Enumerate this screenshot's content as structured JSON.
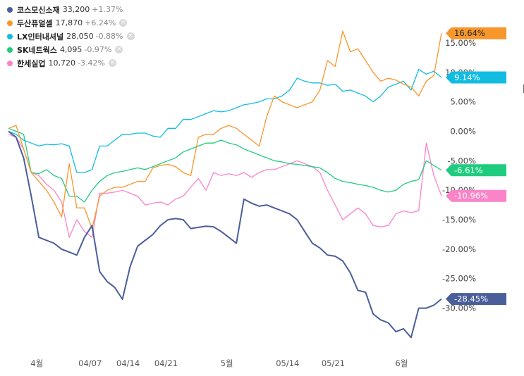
{
  "legend": [
    {
      "name": "코스모신소재",
      "price": "33,200",
      "change": "+1.37%",
      "color": "#4a5e9a",
      "removable": false
    },
    {
      "name": "두산퓨얼셀",
      "price": "17,870",
      "change": "+6.24%",
      "color": "#f7962b",
      "removable": true
    },
    {
      "name": "LX인터내셔널",
      "price": "28,050",
      "change": "-0.88%",
      "color": "#12bce1",
      "removable": true
    },
    {
      "name": "SK네트웍스",
      "price": "4,095",
      "change": "-0.97%",
      "color": "#1fcc7f",
      "removable": true
    },
    {
      "name": "한세실업",
      "price": "10,720",
      "change": "-3.42%",
      "color": "#fb83c8",
      "removable": true
    }
  ],
  "remove_icon": "×",
  "chart_data": {
    "type": "line",
    "x_tick_labels": [
      "4월",
      "04/07",
      "04/14",
      "04/21",
      "5월",
      "05/14",
      "05/21",
      "6월"
    ],
    "y_tick_labels": [
      "15.00%",
      "10.00%",
      "5.00%",
      "0.00%",
      "-5.00%",
      "-10.00%",
      "-15.00%",
      "-20.00%",
      "-25.00%",
      "-30.00%"
    ],
    "y_ticks": [
      15,
      10,
      5,
      0,
      -5,
      -10,
      -15,
      -20,
      -25,
      -30
    ],
    "ylim": [
      -36.5,
      17.5
    ],
    "n_points": 58,
    "series": [
      {
        "name": "코스모신소재",
        "color": "#4a5e9a",
        "end_label": "-28.45%",
        "values": [
          0,
          -1,
          -4.5,
          -11,
          -18,
          -18.5,
          -19,
          -20,
          -20.5,
          -21,
          -18,
          -16,
          -23.8,
          -25.5,
          -26.5,
          -28.5,
          -23,
          -19.5,
          -18.5,
          -17.5,
          -16,
          -15,
          -14.8,
          -15,
          -16.5,
          -16.3,
          -16.1,
          -16.2,
          -17,
          -18,
          -19,
          -11.5,
          -12.2,
          -12.7,
          -12.5,
          -13,
          -13.5,
          -14,
          -15,
          -17,
          -19,
          -19.8,
          -21,
          -21.2,
          -22,
          -24,
          -27,
          -27.3,
          -31,
          -32,
          -32.5,
          -34,
          -33.5,
          -35,
          -30,
          -30,
          -29.5,
          -28.45
        ]
      },
      {
        "name": "두산퓨얼셀",
        "color": "#f7962b",
        "end_label": "16.64%",
        "values": [
          0.5,
          1,
          -3,
          -7,
          -8.5,
          -10,
          -12,
          -14.5,
          -5.5,
          -13,
          -13,
          -16.5,
          -11,
          -10,
          -9.5,
          -9.5,
          -9,
          -8.5,
          -8.5,
          -6.2,
          -5.8,
          -5.6,
          -6,
          -7,
          -7.5,
          -1,
          -0.5,
          -0.5,
          0.5,
          1,
          0.5,
          -0.5,
          -1.5,
          -2.5,
          2.5,
          6,
          5,
          4.5,
          4,
          4.5,
          5,
          7,
          12,
          11,
          17,
          13.5,
          14,
          12,
          10,
          8.5,
          9,
          8.7,
          8,
          7.5,
          6,
          8.5,
          9.5,
          16.64
        ]
      },
      {
        "name": "LX인터내셔널",
        "color": "#12bce1",
        "end_label": "9.14%",
        "values": [
          0,
          -0.5,
          -1.5,
          -2,
          -2.5,
          -2.2,
          -2.3,
          -2.1,
          -2.5,
          -7,
          -7,
          -6.5,
          -2.5,
          -2.5,
          -1.5,
          -0.5,
          -0.5,
          -0.3,
          -0.3,
          -0.8,
          -1,
          0.5,
          0.5,
          2,
          2,
          2.5,
          3,
          3.5,
          3.3,
          3.5,
          4,
          4.5,
          4.7,
          5,
          5.5,
          5.5,
          6,
          7,
          9,
          8.5,
          8.2,
          8.2,
          7.8,
          8,
          6.8,
          7,
          6.5,
          6,
          5,
          6,
          7.5,
          8,
          8.5,
          7,
          10.5,
          9.7,
          10.2,
          9.14
        ]
      },
      {
        "name": "SK네트웍스",
        "color": "#1fcc7f",
        "end_label": "-6.61%",
        "values": [
          0.5,
          0,
          -0.5,
          -7,
          -7.2,
          -6.5,
          -7.5,
          -8,
          -11,
          -11,
          -12,
          -10,
          -8.5,
          -7.5,
          -7,
          -6.8,
          -6.5,
          -6.2,
          -6.5,
          -6,
          -5.5,
          -5,
          -4.5,
          -3.5,
          -3,
          -2.5,
          -2,
          -2,
          -1.5,
          -2,
          -2.3,
          -3,
          -3.5,
          -4,
          -4.5,
          -5,
          -5.2,
          -5.5,
          -5.6,
          -5.8,
          -6,
          -6.2,
          -7,
          -8,
          -8.5,
          -8.7,
          -9,
          -9.2,
          -9.5,
          -10,
          -10.3,
          -10,
          -9,
          -8.5,
          -8.2,
          -5,
          -5.8,
          -6.61
        ]
      },
      {
        "name": "한세실업",
        "color": "#fb83c8",
        "end_label": "-10.96%",
        "values": [
          -0.5,
          -1,
          -3,
          -7,
          -7.5,
          -9,
          -10,
          -12,
          -18,
          -15,
          -17,
          -18,
          -10.5,
          -10.5,
          -10.3,
          -10,
          -10.5,
          -11,
          -12.5,
          -12.2,
          -12,
          -12.5,
          -11.5,
          -11,
          -9.5,
          -8,
          -10,
          -7,
          -7.5,
          -7.2,
          -7.5,
          -7,
          -7.8,
          -7,
          -6.5,
          -6.5,
          -6,
          -5.5,
          -5,
          -5.5,
          -6,
          -7,
          -10,
          -12.5,
          -15,
          -14,
          -13,
          -14,
          -16,
          -16.2,
          -16,
          -14,
          -13.5,
          -13.8,
          -13.5,
          -2,
          -7.5,
          -10.96
        ]
      }
    ]
  }
}
